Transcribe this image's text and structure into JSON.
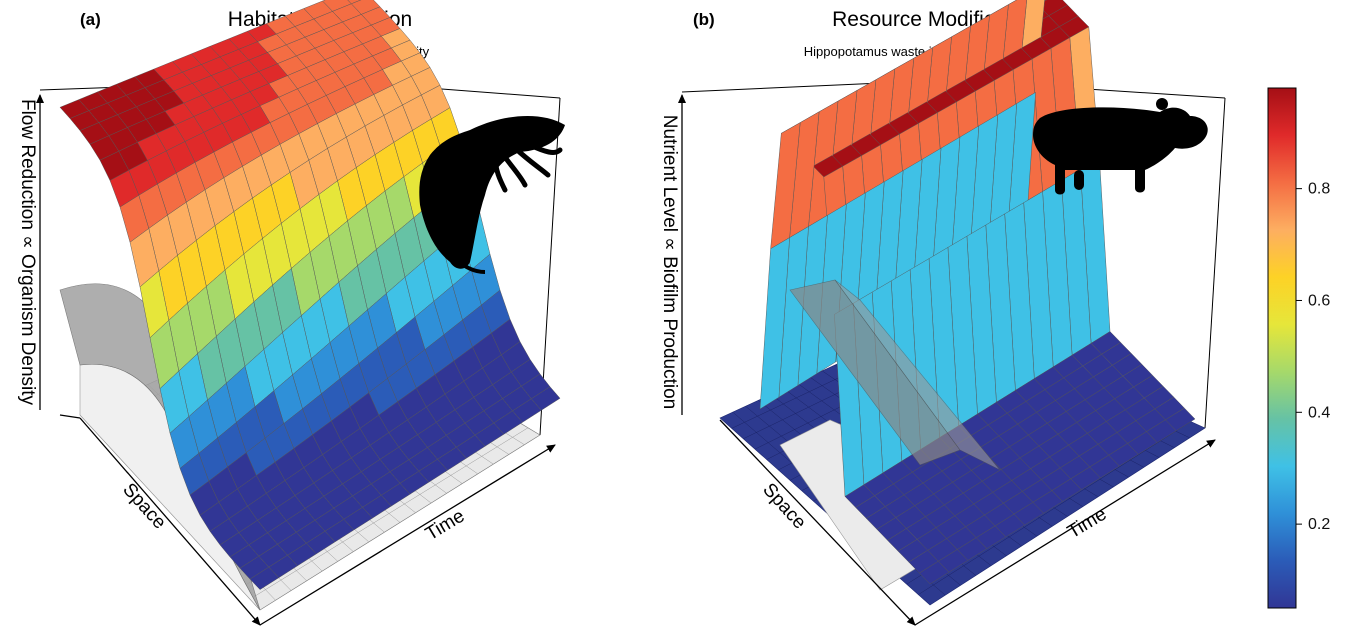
{
  "panels": [
    {
      "letter": "(a)",
      "title": "Habitat Modification",
      "subtitle": "Caddisfly retreat reduces flow velocity",
      "z_label": "Flow Reduction ∝ Organism Density",
      "x_label": "Space",
      "y_label": "Time",
      "icon": "caddisfly-larva-silhouette"
    },
    {
      "letter": "(b)",
      "title": "Resource Modification",
      "subtitle": "Hippopotamus waste increases nutrient levels",
      "z_label": "Nutrient Level ∝ Biofilm Production",
      "x_label": "Space",
      "y_label": "Time",
      "icon": "hippopotamus-silhouette"
    }
  ],
  "chart_data": [
    {
      "type": "surface",
      "panel": "(a)",
      "title": "Habitat Modification",
      "subtitle": "Caddisfly retreat reduces flow velocity",
      "xlabel": "Space",
      "ylabel": "Time",
      "zlabel": "Flow Reduction ∝ Organism Density",
      "zlim": [
        0,
        1
      ],
      "surface_shape": "sigmoid decline in Space, high at origin and dropping to near zero, persistent through Time",
      "colored_surface_z_range": [
        0.05,
        0.98
      ],
      "grey_surfaces": 2
    },
    {
      "type": "surface",
      "panel": "(b)",
      "title": "Resource Modification",
      "subtitle": "Hippopotamus waste increases nutrient levels",
      "xlabel": "Space",
      "ylabel": "Time",
      "zlabel": "Nutrient Level ∝ Biofilm Production",
      "zlim": [
        0,
        1
      ],
      "surface_shape": "plateau ridge centered in Space, extending across Time",
      "colored_surface_z_range": [
        0.05,
        0.98
      ],
      "grey_surfaces": 2
    }
  ],
  "colorbar": {
    "ticks": [
      "0.8",
      "0.6",
      "0.4",
      "0.2"
    ],
    "tick_values": [
      0.8,
      0.6,
      0.4,
      0.2
    ],
    "range": [
      0.05,
      0.98
    ],
    "colors": [
      "#313695",
      "#2b5cb8",
      "#2f90d8",
      "#3fc1e6",
      "#66c2a5",
      "#a6d96a",
      "#e6e63a",
      "#fdd226",
      "#fdae61",
      "#f46d43",
      "#e02a2a",
      "#a50f15"
    ]
  }
}
